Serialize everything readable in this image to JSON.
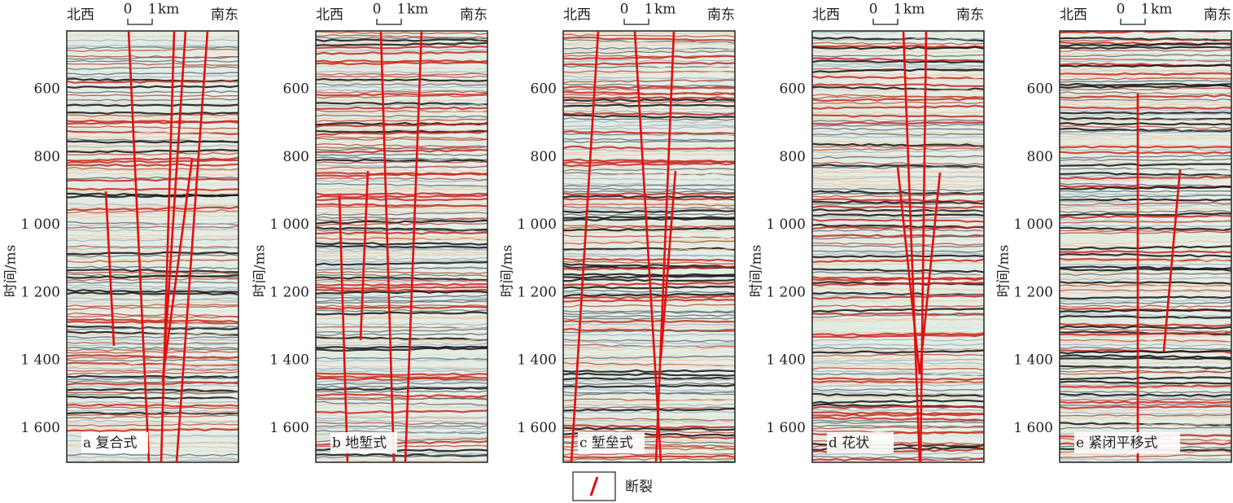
{
  "y_axis": {
    "label": "时间/ms",
    "ylim": [
      427,
      1700
    ],
    "ticks": [
      600,
      800,
      {
        "value": 1000,
        "label": "1 000"
      },
      {
        "value": 1200,
        "label": "1 200"
      },
      {
        "value": 1400,
        "label": "1 400"
      },
      {
        "value": 1600,
        "label": "1 600"
      }
    ]
  },
  "orientation": {
    "left": "北西",
    "right": "南东"
  },
  "scale_bar": {
    "zero": "0",
    "one": "1",
    "unit": "km"
  },
  "panels": [
    {
      "label": "a 复合式"
    },
    {
      "label": "b 地堑式"
    },
    {
      "label": "c 堑垒式"
    },
    {
      "label": "d 花状"
    },
    {
      "label": "e 紧闭平移式"
    }
  ],
  "legend": {
    "label": "断裂"
  }
}
